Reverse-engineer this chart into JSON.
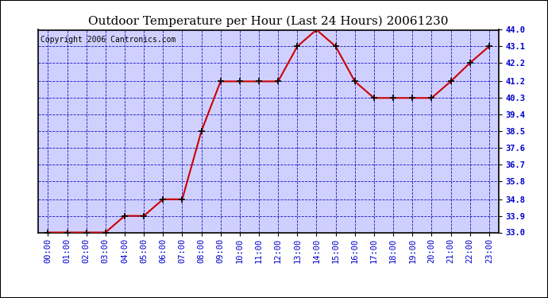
{
  "title": "Outdoor Temperature per Hour (Last 24 Hours) 20061230",
  "copyright": "Copyright 2006 Cantronics.com",
  "hours": [
    "00:00",
    "01:00",
    "02:00",
    "03:00",
    "04:00",
    "05:00",
    "06:00",
    "07:00",
    "08:00",
    "09:00",
    "10:00",
    "11:00",
    "12:00",
    "13:00",
    "14:00",
    "15:00",
    "16:00",
    "17:00",
    "18:00",
    "19:00",
    "20:00",
    "21:00",
    "22:00",
    "23:00"
  ],
  "temps": [
    33.0,
    33.0,
    33.0,
    33.0,
    33.9,
    33.9,
    34.8,
    34.8,
    38.5,
    41.2,
    41.2,
    41.2,
    41.2,
    43.1,
    44.0,
    43.1,
    41.2,
    40.3,
    40.3,
    40.3,
    40.3,
    41.2,
    42.2,
    43.1
  ],
  "line_color": "#cc0000",
  "marker_color": "#cc0000",
  "marker_edge_color": "#000000",
  "bg_color": "#d0d0ff",
  "fig_bg_color": "#ffffff",
  "outer_border_color": "#000000",
  "grid_color_solid": "#0000bb",
  "grid_color_dashed": "#0000bb",
  "title_color": "#000000",
  "copyright_color": "#000000",
  "tick_label_color": "#0000cc",
  "ylim_min": 33.0,
  "ylim_max": 44.0,
  "yticks": [
    33.0,
    33.9,
    34.8,
    35.8,
    36.7,
    37.6,
    38.5,
    39.4,
    40.3,
    41.2,
    42.2,
    43.1,
    44.0
  ],
  "title_fontsize": 11,
  "tick_fontsize": 7.5,
  "copyright_fontsize": 7
}
